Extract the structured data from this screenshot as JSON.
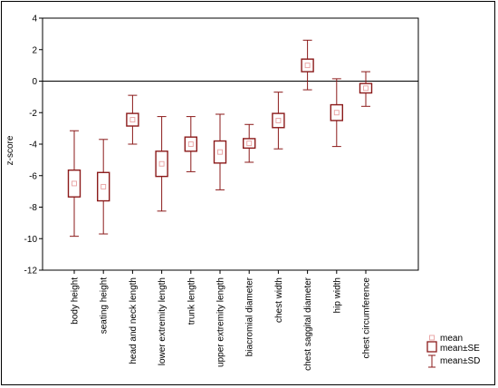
{
  "chart_data": {
    "type": "box",
    "ylabel": "z-score",
    "ylim": [
      -12,
      4
    ],
    "yticks": [
      4,
      2,
      0,
      -2,
      -4,
      -6,
      -8,
      -10,
      -12
    ],
    "reference_line": 0,
    "colors": {
      "box": "#8b1a1a",
      "mean_marker": "#e8a0a0",
      "ref_line": "#000000"
    },
    "categories": [
      "body height",
      "seating height",
      "head and neck length",
      "lower extremity length",
      "trunk length",
      "upper extremity length",
      "biacromial diameter",
      "chest width",
      "chest saggital diameter",
      "hip width",
      "chest circumference"
    ],
    "series": [
      {
        "name": "mean",
        "values": [
          -6.5,
          -6.7,
          -2.45,
          -5.25,
          -4.0,
          -4.5,
          -3.95,
          -2.5,
          1.0,
          -2.0,
          -0.45
        ]
      },
      {
        "name": "mean±SE",
        "lower": [
          -7.35,
          -7.6,
          -2.85,
          -6.05,
          -4.45,
          -5.2,
          -4.25,
          -2.95,
          0.6,
          -2.5,
          -0.75
        ],
        "upper": [
          -5.65,
          -5.8,
          -2.05,
          -4.45,
          -3.55,
          -3.8,
          -3.65,
          -2.05,
          1.4,
          -1.5,
          -0.15
        ]
      },
      {
        "name": "mean±SD",
        "lower": [
          -9.85,
          -9.7,
          -4.0,
          -8.25,
          -5.75,
          -6.9,
          -5.15,
          -4.3,
          -0.55,
          -4.15,
          -1.6
        ],
        "upper": [
          -3.15,
          -3.7,
          -0.9,
          -2.25,
          -2.25,
          -2.1,
          -2.75,
          -0.7,
          2.6,
          0.15,
          0.6
        ]
      }
    ],
    "legend": {
      "position": "bottom-right",
      "entries": [
        "mean",
        "mean±SE",
        "mean±SD"
      ]
    }
  }
}
